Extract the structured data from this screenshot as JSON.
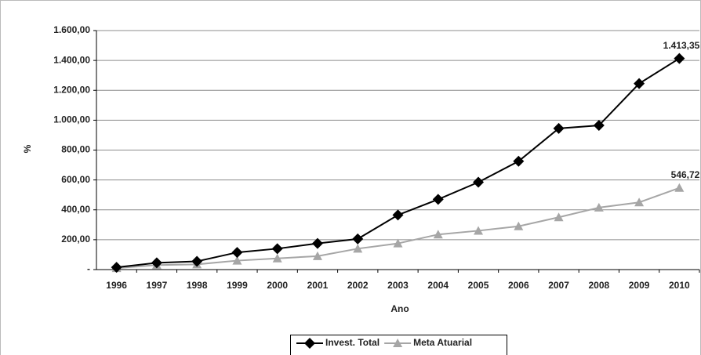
{
  "chart_data": {
    "type": "line",
    "x_label": "Ano",
    "y_label": "%",
    "categories": [
      "1996",
      "1997",
      "1998",
      "1999",
      "2000",
      "2001",
      "2002",
      "2003",
      "2004",
      "2005",
      "2006",
      "2007",
      "2008",
      "2009",
      "2010"
    ],
    "series": [
      {
        "name": "Invest. Total",
        "color": "#000000",
        "marker": "diamond",
        "values": [
          15,
          45,
          55,
          115,
          140,
          175,
          205,
          365,
          470,
          585,
          725,
          945,
          965,
          1245,
          1413.35
        ],
        "value_labels": [
          null,
          null,
          null,
          null,
          null,
          null,
          null,
          null,
          null,
          null,
          null,
          null,
          null,
          null,
          "1.413,35"
        ]
      },
      {
        "name": "Meta Atuarial",
        "color": "#a6a6a6",
        "marker": "triangle",
        "values": [
          10,
          30,
          35,
          60,
          75,
          90,
          140,
          175,
          235,
          260,
          290,
          350,
          415,
          450,
          546.72
        ],
        "value_labels": [
          null,
          null,
          null,
          null,
          null,
          null,
          null,
          null,
          null,
          null,
          null,
          null,
          null,
          null,
          "546,72"
        ]
      }
    ],
    "ylim": [
      0,
      1600
    ],
    "yticks": [
      {
        "value": 0,
        "label": "-"
      },
      {
        "value": 200,
        "label": "200,00"
      },
      {
        "value": 400,
        "label": "400,00"
      },
      {
        "value": 600,
        "label": "600,00"
      },
      {
        "value": 800,
        "label": "800,00"
      },
      {
        "value": 1000,
        "label": "1.000,00"
      },
      {
        "value": 1200,
        "label": "1.200,00"
      },
      {
        "value": 1400,
        "label": "1.400,00"
      },
      {
        "value": 1600,
        "label": "1.600,00"
      }
    ],
    "grid": true,
    "legend": "bottom"
  }
}
